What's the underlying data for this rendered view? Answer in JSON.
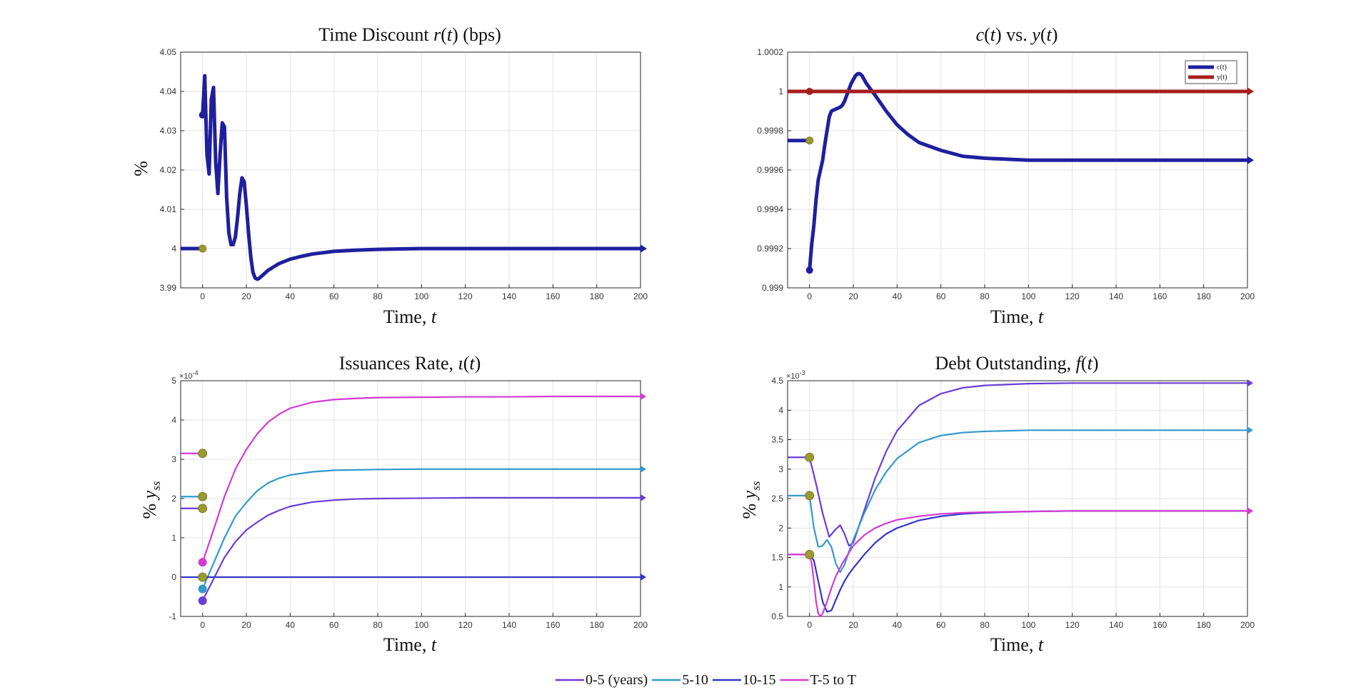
{
  "figure_legend": {
    "entries": [
      {
        "label": "0-5 (years)",
        "color": "#6a3cd6"
      },
      {
        "label": "5-10",
        "color": "#3399cc"
      },
      {
        "label": "10-15",
        "color": "#3535c8"
      },
      {
        "label": "T-5 to T",
        "color": "#d23bd2"
      }
    ]
  },
  "chart_data": [
    {
      "type": "line",
      "title": "Time Discount r(t) (bps)",
      "xlabel": "Time, t",
      "ylabel": "%",
      "xlim": [
        -10,
        200
      ],
      "ylim": [
        3.99,
        4.05
      ],
      "xticks": [
        0,
        20,
        40,
        60,
        80,
        100,
        120,
        140,
        160,
        180,
        200
      ],
      "yticks": [
        3.99,
        4,
        4.01,
        4.02,
        4.03,
        4.04,
        4.05
      ],
      "ytick_labels": [
        "3.99",
        "4",
        "4.01",
        "4.02",
        "4.03",
        "4.04",
        "4.05"
      ],
      "grid": true,
      "series": [
        {
          "color": "#1f1f9e",
          "pre": 4.0,
          "start_dot": 4.034,
          "ss_dot": 4.0,
          "x": [
            0,
            1,
            2,
            3,
            4,
            5,
            6,
            7,
            8,
            9,
            10,
            11,
            12,
            13,
            14,
            15,
            16,
            17,
            18,
            19,
            20,
            21,
            22,
            23,
            24,
            25,
            26,
            28,
            30,
            35,
            40,
            45,
            50,
            60,
            70,
            80,
            90,
            100,
            120,
            140,
            160,
            180,
            200
          ],
          "y": [
            4.034,
            4.044,
            4.024,
            4.019,
            4.038,
            4.041,
            4.022,
            4.014,
            4.024,
            4.032,
            4.031,
            4.013,
            4.004,
            4.001,
            4.001,
            4.003,
            4.008,
            4.014,
            4.018,
            4.017,
            4.011,
            4.004,
            3.998,
            3.994,
            3.9925,
            3.9922,
            3.9925,
            3.9935,
            3.9945,
            3.9962,
            3.9973,
            3.998,
            3.9986,
            3.9993,
            3.9996,
            3.9998,
            3.9999,
            4.0,
            4.0,
            4.0,
            4.0,
            4.0,
            4.0
          ]
        }
      ]
    },
    {
      "type": "line",
      "title": "c(t) vs. y(t)",
      "xlabel": "Time, t",
      "ylabel": "",
      "xlim": [
        -10,
        200
      ],
      "ylim": [
        0.999,
        1.0002
      ],
      "xticks": [
        0,
        20,
        40,
        60,
        80,
        100,
        120,
        140,
        160,
        180,
        200
      ],
      "yticks": [
        0.999,
        0.9992,
        0.9994,
        0.9996,
        0.9998,
        1.0,
        1.0002
      ],
      "ytick_labels": [
        "0.999",
        "0.9992",
        "0.9994",
        "0.9996",
        "0.9998",
        "1",
        "1.0002"
      ],
      "grid": true,
      "legend": {
        "position": "top-right",
        "entries": [
          "c(t)",
          "y(t)"
        ]
      },
      "series": [
        {
          "name": "c(t)",
          "color": "#1f1f9e",
          "pre": 0.99975,
          "start_dot": 0.99909,
          "ss_dot": 0.99975,
          "x": [
            0,
            1,
            2,
            3,
            4,
            5,
            6,
            7,
            8,
            9,
            10,
            12,
            14,
            15,
            16,
            17,
            18,
            19,
            20,
            21,
            22,
            23,
            24,
            25,
            26,
            28,
            30,
            35,
            40,
            45,
            50,
            60,
            70,
            80,
            100,
            120,
            140,
            160,
            180,
            200
          ],
          "y": [
            0.99909,
            0.99922,
            0.99932,
            0.99945,
            0.99955,
            0.9996,
            0.99965,
            0.99973,
            0.9998,
            0.99987,
            0.9999,
            0.99991,
            0.99992,
            0.99993,
            0.99995,
            0.99998,
            1.00001,
            1.00004,
            1.00006,
            1.00008,
            1.00009,
            1.00009,
            1.00008,
            1.00006,
            1.00004,
            1.00001,
            0.99998,
            0.9999,
            0.99983,
            0.99978,
            0.99974,
            0.9997,
            0.99967,
            0.99966,
            0.99965,
            0.99965,
            0.99965,
            0.99965,
            0.99965,
            0.99965
          ]
        },
        {
          "name": "y(t)",
          "color": "#a61e1e",
          "pre": 1.0,
          "start_dot": 1.0,
          "ss_dot": null,
          "x": [
            0,
            200
          ],
          "y": [
            1.0,
            1.0
          ]
        }
      ]
    },
    {
      "type": "line",
      "title": "Issuances Rate, ι(t)",
      "xlabel": "Time, t",
      "ylabel": "% y_ss",
      "exponent": "×10^-4",
      "xlim": [
        -10,
        200
      ],
      "ylim": [
        -1,
        5
      ],
      "xticks": [
        0,
        20,
        40,
        60,
        80,
        100,
        120,
        140,
        160,
        180,
        200
      ],
      "yticks": [
        -1,
        0,
        1,
        2,
        3,
        4,
        5
      ],
      "ytick_labels": [
        "-1",
        "0",
        "1",
        "2",
        "3",
        "4",
        "5"
      ],
      "grid": true,
      "series": [
        {
          "name": "0-5 (years)",
          "color": "#6a3cd6",
          "pre": 1.75,
          "start_dot": -0.6,
          "ss_dot": 1.75,
          "x": [
            0,
            5,
            10,
            15,
            20,
            25,
            30,
            35,
            40,
            50,
            60,
            70,
            80,
            100,
            120,
            140,
            160,
            180,
            200
          ],
          "y": [
            -0.6,
            -0.05,
            0.5,
            0.9,
            1.2,
            1.4,
            1.58,
            1.7,
            1.8,
            1.91,
            1.96,
            1.99,
            2.0,
            2.01,
            2.02,
            2.02,
            2.02,
            2.02,
            2.02
          ]
        },
        {
          "name": "5-10",
          "color": "#3399cc",
          "pre": 2.05,
          "start_dot": -0.3,
          "ss_dot": 2.05,
          "x": [
            0,
            5,
            10,
            15,
            20,
            25,
            30,
            35,
            40,
            50,
            60,
            70,
            80,
            100,
            120,
            140,
            160,
            180,
            200
          ],
          "y": [
            -0.3,
            0.35,
            1.0,
            1.55,
            1.9,
            2.2,
            2.4,
            2.52,
            2.6,
            2.68,
            2.72,
            2.73,
            2.74,
            2.75,
            2.75,
            2.75,
            2.75,
            2.75,
            2.75
          ]
        },
        {
          "name": "10-15",
          "color": "#3535c8",
          "pre": 0.0,
          "start_dot": 0.0,
          "ss_dot": 0.0,
          "x": [
            0,
            200
          ],
          "y": [
            0.0,
            0.0
          ]
        },
        {
          "name": "T-5 to T",
          "color": "#d23bd2",
          "pre": 3.15,
          "start_dot": 0.38,
          "ss_dot": 3.15,
          "x": [
            0,
            5,
            10,
            15,
            20,
            25,
            30,
            35,
            40,
            50,
            60,
            70,
            80,
            100,
            120,
            140,
            160,
            180,
            200
          ],
          "y": [
            0.38,
            1.2,
            2.05,
            2.75,
            3.25,
            3.65,
            3.95,
            4.15,
            4.3,
            4.45,
            4.52,
            4.55,
            4.57,
            4.58,
            4.59,
            4.59,
            4.6,
            4.6,
            4.6
          ]
        }
      ]
    },
    {
      "type": "line",
      "title": "Debt Outstanding, f(t)",
      "xlabel": "Time, t",
      "ylabel": "% y_ss",
      "exponent": "×10^-3",
      "xlim": [
        -10,
        200
      ],
      "ylim": [
        0.5,
        4.5
      ],
      "xticks": [
        0,
        20,
        40,
        60,
        80,
        100,
        120,
        140,
        160,
        180,
        200
      ],
      "yticks": [
        0.5,
        1,
        1.5,
        2,
        2.5,
        3,
        3.5,
        4,
        4.5
      ],
      "ytick_labels": [
        "0.5",
        "1",
        "1.5",
        "2",
        "2.5",
        "3",
        "3.5",
        "4",
        "4.5"
      ],
      "grid": true,
      "series": [
        {
          "name": "0-5 (years)",
          "color": "#6a3cd6",
          "pre": 3.2,
          "start_dot": 3.2,
          "ss_dot": 3.2,
          "x": [
            0,
            3,
            6,
            9,
            12,
            14,
            16,
            18,
            20,
            25,
            30,
            35,
            40,
            50,
            60,
            70,
            80,
            100,
            120,
            140,
            160,
            180,
            200
          ],
          "y": [
            3.2,
            2.75,
            2.25,
            1.85,
            1.98,
            2.05,
            1.9,
            1.7,
            1.75,
            2.3,
            2.85,
            3.3,
            3.65,
            4.08,
            4.28,
            4.38,
            4.42,
            4.45,
            4.46,
            4.46,
            4.46,
            4.46,
            4.46
          ]
        },
        {
          "name": "5-10",
          "color": "#3399cc",
          "pre": 2.55,
          "start_dot": 2.55,
          "ss_dot": 2.55,
          "x": [
            0,
            2,
            4,
            6,
            8,
            10,
            12,
            14,
            16,
            18,
            20,
            25,
            30,
            35,
            40,
            50,
            60,
            70,
            80,
            100,
            120,
            140,
            160,
            180,
            200
          ],
          "y": [
            2.55,
            2.0,
            1.68,
            1.7,
            1.8,
            1.68,
            1.4,
            1.25,
            1.38,
            1.6,
            1.8,
            2.25,
            2.65,
            2.95,
            3.18,
            3.45,
            3.57,
            3.62,
            3.64,
            3.66,
            3.66,
            3.66,
            3.66,
            3.66,
            3.66
          ]
        },
        {
          "name": "10-15",
          "color": "#3535c8",
          "pre": 1.55,
          "start_dot": 1.55,
          "ss_dot": 1.55,
          "x": [
            0,
            2,
            4,
            6,
            8,
            10,
            12,
            14,
            16,
            18,
            20,
            25,
            30,
            35,
            40,
            50,
            60,
            70,
            80,
            100,
            120,
            140,
            160,
            180,
            200
          ],
          "y": [
            1.55,
            1.45,
            1.1,
            0.75,
            0.58,
            0.6,
            0.78,
            0.95,
            1.1,
            1.22,
            1.32,
            1.55,
            1.75,
            1.9,
            2.0,
            2.13,
            2.2,
            2.24,
            2.26,
            2.28,
            2.29,
            2.29,
            2.29,
            2.29,
            2.29
          ]
        },
        {
          "name": "T-5 to T",
          "color": "#d23bd2",
          "pre": 1.55,
          "start_dot": 1.55,
          "ss_dot": 1.55,
          "x": [
            0,
            1,
            2,
            3,
            4,
            5,
            6,
            8,
            10,
            12,
            15,
            20,
            25,
            30,
            35,
            40,
            50,
            60,
            70,
            80,
            100,
            120,
            140,
            160,
            180,
            200
          ],
          "y": [
            1.55,
            1.4,
            1.1,
            0.75,
            0.55,
            0.5,
            0.55,
            0.75,
            0.98,
            1.18,
            1.4,
            1.7,
            1.88,
            2.0,
            2.08,
            2.14,
            2.2,
            2.24,
            2.26,
            2.27,
            2.28,
            2.29,
            2.29,
            2.29,
            2.29,
            2.29
          ]
        }
      ]
    }
  ]
}
